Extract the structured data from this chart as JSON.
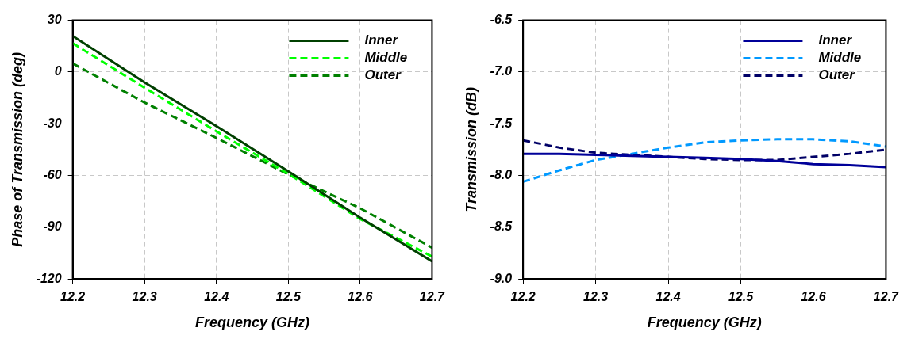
{
  "chart_data": [
    {
      "type": "line",
      "xlabel": "Frequency (GHz)",
      "ylabel": "Phase of Transmission (deg)",
      "x": [
        12.2,
        12.3,
        12.4,
        12.5,
        12.6,
        12.7
      ],
      "series": [
        {
          "name": "Inner",
          "color": "#004000",
          "line_style": "solid",
          "values": [
            20.9,
            -6,
            -31.4,
            -57.6,
            -84.4,
            -109.8
          ]
        },
        {
          "name": "Middle",
          "color": "#00ff00",
          "line_style": "dashed",
          "values": [
            16.7,
            -9.1,
            -34.4,
            -59,
            -85.2,
            -107
          ]
        },
        {
          "name": "Outer",
          "color": "#008000",
          "line_style": "dashed",
          "values": [
            5,
            -17.7,
            -38.2,
            -59.4,
            -79,
            -101.8
          ]
        }
      ],
      "xlim": [
        12.2,
        12.7
      ],
      "xticks": [
        12.2,
        12.3,
        12.4,
        12.5,
        12.6,
        12.7
      ],
      "ylim": [
        -120,
        30
      ],
      "yticks": [
        -120,
        -90,
        -60,
        -30,
        0,
        30
      ],
      "grid": true,
      "legend": "top right",
      "marker": "none"
    },
    {
      "type": "line",
      "xlabel": "Frequency (GHz)",
      "ylabel": "Transmission (dB)",
      "x": [
        12.2,
        12.25,
        12.3,
        12.35,
        12.4,
        12.45,
        12.5,
        12.55,
        12.6,
        12.65,
        12.7
      ],
      "series": [
        {
          "name": "Inner",
          "color": "#000099",
          "line_style": "solid",
          "values": [
            -7.79,
            -7.79,
            -7.8,
            -7.81,
            -7.82,
            -7.83,
            -7.84,
            -7.86,
            -7.89,
            -7.9,
            -7.92
          ]
        },
        {
          "name": "Middle",
          "color": "#0099ff",
          "line_style": "dashed",
          "values": [
            -8.06,
            -7.95,
            -7.85,
            -7.79,
            -7.73,
            -7.68,
            -7.66,
            -7.65,
            -7.65,
            -7.67,
            -7.72
          ]
        },
        {
          "name": "Outer",
          "color": "#000066",
          "line_style": "dashed",
          "values": [
            -7.66,
            -7.73,
            -7.78,
            -7.8,
            -7.82,
            -7.84,
            -7.85,
            -7.85,
            -7.82,
            -7.79,
            -7.75
          ]
        }
      ],
      "xlim": [
        12.2,
        12.7
      ],
      "xticks": [
        12.2,
        12.3,
        12.4,
        12.5,
        12.6,
        12.7
      ],
      "ylim": [
        -9,
        -6.5
      ],
      "yticks": [
        {
          "value": -9,
          "label": "-9.0"
        },
        -8.5,
        {
          "value": -8,
          "label": "-8.0"
        },
        -7.5,
        {
          "value": -7,
          "label": "-7.0"
        },
        -6.5
      ],
      "grid": true,
      "legend": "top right",
      "marker": "none"
    }
  ]
}
